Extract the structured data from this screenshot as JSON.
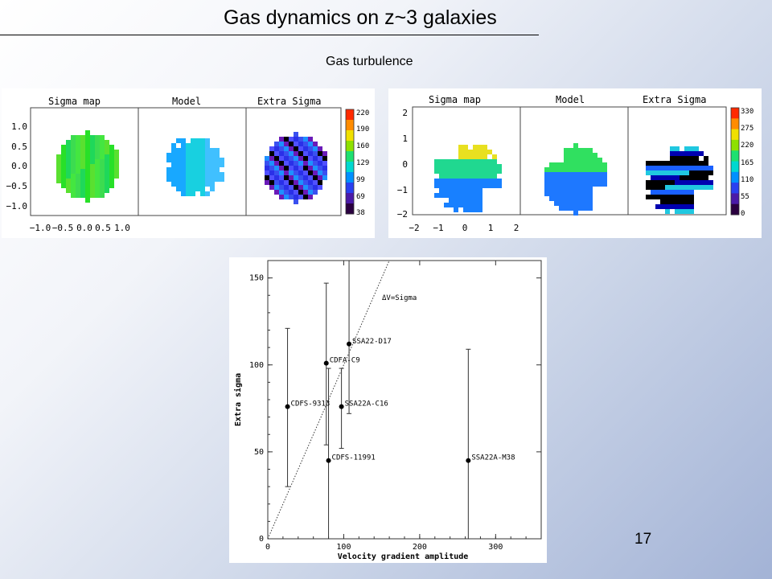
{
  "slide": {
    "title": "Gas dynamics on z~3 galaxies",
    "subtitle": "Gas turbulence",
    "page_number": "17"
  },
  "maps": [
    {
      "panel_titles": [
        "Sigma map",
        "Model",
        "Extra Sigma"
      ],
      "colorbar_ticks": [
        "220",
        "190",
        "160",
        "129",
        "99",
        "69",
        "38"
      ],
      "y_ticks": [
        "1.0",
        "0.5",
        "0.0",
        "−0.5",
        "−1.0"
      ],
      "x_ticks": [
        "−1.0",
        "−0.5",
        "0.0",
        "0.5",
        "1.0"
      ]
    },
    {
      "panel_titles": [
        "Sigma map",
        "Model",
        "Extra Sigma"
      ],
      "colorbar_ticks": [
        "330",
        "275",
        "220",
        "165",
        "110",
        "55",
        "0"
      ],
      "y_ticks": [
        "2",
        "1",
        "0",
        "−1",
        "−2"
      ],
      "x_ticks": [
        "−2",
        "−1",
        "0",
        "1",
        "2"
      ]
    }
  ],
  "chart_data": {
    "type": "scatter",
    "title": "",
    "xlabel": "Velocity gradient amplitude",
    "ylabel": "Extra sigma",
    "xlim": [
      0,
      360
    ],
    "ylim": [
      0,
      160
    ],
    "x_ticks": [
      0,
      100,
      200,
      300
    ],
    "y_ticks": [
      0,
      50,
      100,
      150
    ],
    "grid": false,
    "reference_line": {
      "label": "ΔV=Sigma",
      "x": [
        0,
        160
      ],
      "y": [
        0,
        160
      ]
    },
    "points": [
      {
        "label": "SSA22-D17",
        "x": 107,
        "y": 112,
        "yerr_low": 72,
        "yerr_high": 160
      },
      {
        "label": "CDFA-C9",
        "x": 77,
        "y": 101,
        "yerr_low": 54,
        "yerr_high": 147
      },
      {
        "label": "CDFS-9313",
        "x": 26,
        "y": 76,
        "yerr_low": 30,
        "yerr_high": 121
      },
      {
        "label": "SSA22A-C16",
        "x": 97,
        "y": 76,
        "yerr_low": 52,
        "yerr_high": 98
      },
      {
        "label": "CDFS-11991",
        "x": 80,
        "y": 45,
        "yerr_low": 0,
        "yerr_high": 98
      },
      {
        "label": "SSA22A-M38",
        "x": 264,
        "y": 45,
        "yerr_low": 0,
        "yerr_high": 109
      }
    ]
  }
}
